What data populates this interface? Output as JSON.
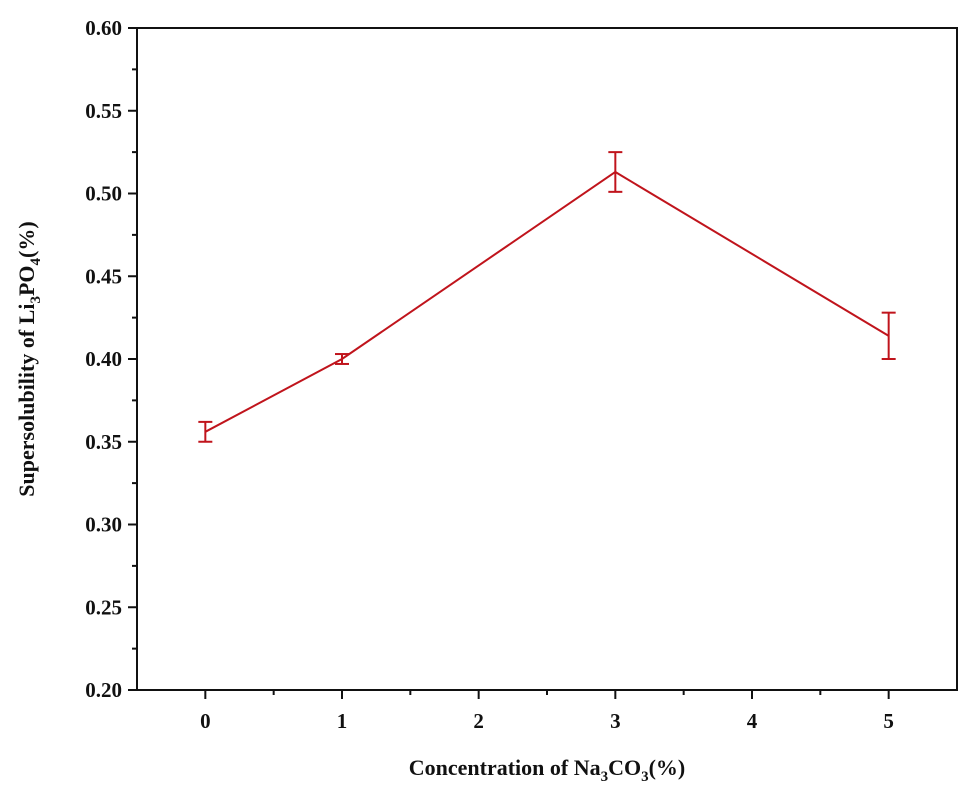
{
  "chart_data": {
    "type": "line",
    "title": "",
    "xlabel_parts": [
      {
        "text": "Concentration of Na",
        "sub": false
      },
      {
        "text": "3",
        "sub": true
      },
      {
        "text": "CO",
        "sub": false
      },
      {
        "text": "3",
        "sub": true
      },
      {
        "text": "(%)",
        "sub": false
      }
    ],
    "ylabel_parts": [
      {
        "text": "Supersolubility of Li",
        "sub": false
      },
      {
        "text": "3",
        "sub": true
      },
      {
        "text": "PO",
        "sub": false
      },
      {
        "text": "4",
        "sub": true
      },
      {
        "text": "(%)",
        "sub": false
      }
    ],
    "xlim": [
      -0.5,
      5.5
    ],
    "ylim": [
      0.2,
      0.6
    ],
    "x_ticks": [
      0,
      1,
      2,
      3,
      4,
      5
    ],
    "x_tick_labels": [
      "0",
      "1",
      "2",
      "3",
      "4",
      "5"
    ],
    "y_ticks": [
      0.2,
      0.25,
      0.3,
      0.35,
      0.4,
      0.45,
      0.5,
      0.55,
      0.6
    ],
    "y_tick_labels": [
      "0.20",
      "0.25",
      "0.30",
      "0.35",
      "0.40",
      "0.45",
      "0.50",
      "0.55",
      "0.60"
    ],
    "grid": false,
    "series": [
      {
        "color": "#c0141c",
        "x": [
          0,
          1,
          3,
          5
        ],
        "y": [
          0.356,
          0.4,
          0.513,
          0.414
        ],
        "error": [
          0.006,
          0.003,
          0.012,
          0.014
        ]
      }
    ]
  }
}
